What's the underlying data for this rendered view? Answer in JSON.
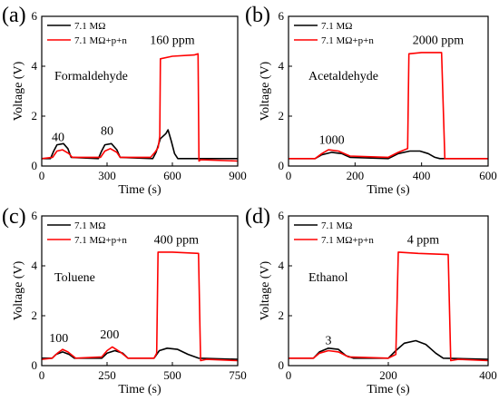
{
  "chart_data": [
    {
      "type": "line",
      "panel_label": "(a)",
      "xlabel": "Time (s)",
      "ylabel": "Voltage (V)",
      "xlim": [
        0,
        900
      ],
      "ylim": [
        0,
        6
      ],
      "xticks": [
        0,
        300,
        600,
        900
      ],
      "yticks": [
        0,
        2,
        4,
        6
      ],
      "gas": "Formaldehyde",
      "legend": {
        "placement": "top-left",
        "entries": [
          "7.1 MΩ",
          "7.1 MΩ+p+n"
        ]
      },
      "annotations": [
        {
          "text": "40",
          "x": 75,
          "y": 1.0
        },
        {
          "text": "80",
          "x": 300,
          "y": 1.25
        },
        {
          "text": "160 ppm",
          "x": 600,
          "y": 4.9
        }
      ],
      "series": [
        {
          "name": "7.1 MΩ",
          "color": "#000000",
          "points": [
            [
              0,
              0.3
            ],
            [
              40,
              0.3
            ],
            [
              55,
              0.6
            ],
            [
              70,
              0.85
            ],
            [
              100,
              0.9
            ],
            [
              120,
              0.7
            ],
            [
              135,
              0.35
            ],
            [
              260,
              0.3
            ],
            [
              275,
              0.6
            ],
            [
              290,
              0.85
            ],
            [
              320,
              0.9
            ],
            [
              345,
              0.65
            ],
            [
              360,
              0.35
            ],
            [
              510,
              0.3
            ],
            [
              525,
              0.55
            ],
            [
              545,
              1.1
            ],
            [
              570,
              1.3
            ],
            [
              580,
              1.45
            ],
            [
              595,
              1.0
            ],
            [
              610,
              0.5
            ],
            [
              625,
              0.3
            ],
            [
              900,
              0.3
            ]
          ]
        },
        {
          "name": "7.1 MΩ+p+n",
          "color": "#ff0000",
          "points": [
            [
              0,
              0.3
            ],
            [
              50,
              0.35
            ],
            [
              70,
              0.6
            ],
            [
              95,
              0.65
            ],
            [
              125,
              0.5
            ],
            [
              140,
              0.35
            ],
            [
              270,
              0.35
            ],
            [
              290,
              0.6
            ],
            [
              315,
              0.7
            ],
            [
              345,
              0.55
            ],
            [
              360,
              0.35
            ],
            [
              500,
              0.35
            ],
            [
              520,
              0.55
            ],
            [
              535,
              0.75
            ],
            [
              542,
              1.2
            ],
            [
              545,
              4.3
            ],
            [
              600,
              4.4
            ],
            [
              700,
              4.45
            ],
            [
              718,
              4.5
            ],
            [
              722,
              0.2
            ],
            [
              730,
              0.25
            ],
            [
              900,
              0.2
            ]
          ]
        }
      ]
    },
    {
      "type": "line",
      "panel_label": "(b)",
      "xlabel": "Time (s)",
      "ylabel": "Voltage (V)",
      "xlim": [
        0,
        600
      ],
      "ylim": [
        0,
        6
      ],
      "xticks": [
        0,
        200,
        400,
        600
      ],
      "yticks": [
        0,
        2,
        4,
        6
      ],
      "gas": "Acetaldehyde",
      "legend": {
        "placement": "top-left",
        "entries": [
          "7.1 MΩ",
          "7.1 MΩ+p+n"
        ]
      },
      "annotations": [
        {
          "text": "1000",
          "x": 130,
          "y": 0.9
        },
        {
          "text": "2000 ppm",
          "x": 450,
          "y": 4.9
        }
      ],
      "series": [
        {
          "name": "7.1 MΩ",
          "color": "#000000",
          "points": [
            [
              0,
              0.3
            ],
            [
              80,
              0.3
            ],
            [
              100,
              0.45
            ],
            [
              130,
              0.55
            ],
            [
              160,
              0.5
            ],
            [
              185,
              0.35
            ],
            [
              300,
              0.3
            ],
            [
              330,
              0.5
            ],
            [
              365,
              0.6
            ],
            [
              395,
              0.6
            ],
            [
              420,
              0.5
            ],
            [
              440,
              0.35
            ],
            [
              455,
              0.3
            ],
            [
              600,
              0.3
            ]
          ]
        },
        {
          "name": "7.1 MΩ+p+n",
          "color": "#ff0000",
          "points": [
            [
              0,
              0.3
            ],
            [
              80,
              0.3
            ],
            [
              100,
              0.5
            ],
            [
              120,
              0.65
            ],
            [
              150,
              0.6
            ],
            [
              185,
              0.4
            ],
            [
              300,
              0.35
            ],
            [
              330,
              0.55
            ],
            [
              358,
              0.7
            ],
            [
              362,
              4.5
            ],
            [
              400,
              4.55
            ],
            [
              460,
              4.55
            ],
            [
              470,
              0.3
            ],
            [
              600,
              0.3
            ]
          ]
        }
      ]
    },
    {
      "type": "line",
      "panel_label": "(c)",
      "xlabel": "Time (s)",
      "ylabel": "Voltage (V)",
      "xlim": [
        0,
        750
      ],
      "ylim": [
        0,
        6
      ],
      "xticks": [
        0,
        250,
        500,
        750
      ],
      "yticks": [
        0,
        2,
        4,
        6
      ],
      "gas": "Toluene",
      "legend": {
        "placement": "top-left",
        "entries": [
          "7.1 MΩ",
          "7.1 MΩ+p+n"
        ]
      },
      "annotations": [
        {
          "text": "100",
          "x": 65,
          "y": 0.95
        },
        {
          "text": "200",
          "x": 260,
          "y": 1.1
        },
        {
          "text": "400 ppm",
          "x": 515,
          "y": 4.9
        }
      ],
      "series": [
        {
          "name": "7.1 MΩ",
          "color": "#000000",
          "points": [
            [
              0,
              0.3
            ],
            [
              40,
              0.3
            ],
            [
              55,
              0.45
            ],
            [
              80,
              0.55
            ],
            [
              105,
              0.45
            ],
            [
              125,
              0.3
            ],
            [
              230,
              0.3
            ],
            [
              250,
              0.5
            ],
            [
              280,
              0.6
            ],
            [
              310,
              0.5
            ],
            [
              330,
              0.3
            ],
            [
              430,
              0.3
            ],
            [
              450,
              0.6
            ],
            [
              480,
              0.7
            ],
            [
              520,
              0.65
            ],
            [
              560,
              0.45
            ],
            [
              600,
              0.3
            ],
            [
              750,
              0.25
            ]
          ]
        },
        {
          "name": "7.1 MΩ+p+n",
          "color": "#ff0000",
          "points": [
            [
              0,
              0.25
            ],
            [
              40,
              0.3
            ],
            [
              60,
              0.5
            ],
            [
              80,
              0.65
            ],
            [
              100,
              0.55
            ],
            [
              130,
              0.3
            ],
            [
              230,
              0.35
            ],
            [
              250,
              0.6
            ],
            [
              270,
              0.75
            ],
            [
              300,
              0.55
            ],
            [
              330,
              0.3
            ],
            [
              430,
              0.3
            ],
            [
              440,
              0.5
            ],
            [
              445,
              4.55
            ],
            [
              500,
              4.55
            ],
            [
              600,
              4.5
            ],
            [
              608,
              0.2
            ],
            [
              630,
              0.25
            ],
            [
              750,
              0.2
            ]
          ]
        }
      ]
    },
    {
      "type": "line",
      "panel_label": "(d)",
      "xlabel": "Time (s)",
      "ylabel": "Voltage (V)",
      "xlim": [
        0,
        400
      ],
      "ylim": [
        0,
        6
      ],
      "xticks": [
        0,
        200,
        400
      ],
      "yticks": [
        0,
        2,
        4,
        6
      ],
      "gas": "Ethanol",
      "legend": {
        "placement": "top-left",
        "entries": [
          "7.1 MΩ",
          "7.1 MΩ+p+n"
        ]
      },
      "annotations": [
        {
          "text": "3",
          "x": 80,
          "y": 0.85
        },
        {
          "text": "4 ppm",
          "x": 270,
          "y": 4.9
        }
      ],
      "series": [
        {
          "name": "7.1 MΩ",
          "color": "#000000",
          "points": [
            [
              0,
              0.3
            ],
            [
              50,
              0.3
            ],
            [
              62,
              0.55
            ],
            [
              80,
              0.7
            ],
            [
              100,
              0.65
            ],
            [
              115,
              0.4
            ],
            [
              130,
              0.3
            ],
            [
              200,
              0.3
            ],
            [
              215,
              0.6
            ],
            [
              232,
              0.9
            ],
            [
              255,
              1.0
            ],
            [
              275,
              0.85
            ],
            [
              295,
              0.5
            ],
            [
              310,
              0.3
            ],
            [
              400,
              0.25
            ]
          ]
        },
        {
          "name": "7.1 MΩ+p+n",
          "color": "#ff0000",
          "points": [
            [
              0,
              0.3
            ],
            [
              50,
              0.3
            ],
            [
              62,
              0.5
            ],
            [
              80,
              0.6
            ],
            [
              100,
              0.55
            ],
            [
              120,
              0.35
            ],
            [
              200,
              0.3
            ],
            [
              215,
              0.45
            ],
            [
              220,
              4.55
            ],
            [
              260,
              4.5
            ],
            [
              320,
              4.45
            ],
            [
              325,
              0.2
            ],
            [
              340,
              0.25
            ],
            [
              400,
              0.2
            ]
          ]
        }
      ]
    }
  ]
}
